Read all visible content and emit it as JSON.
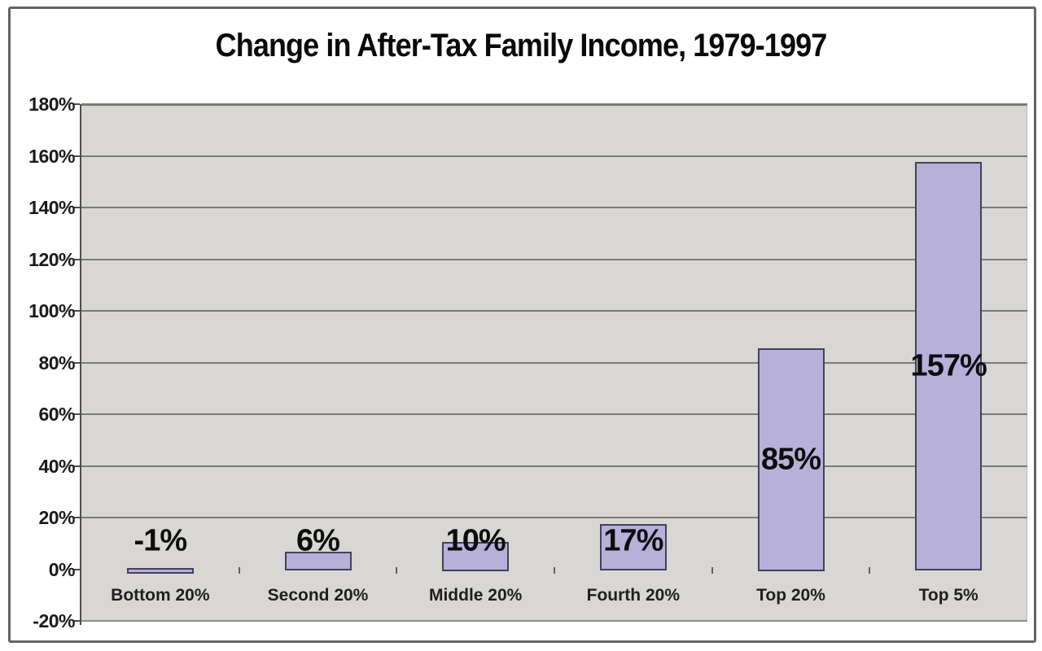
{
  "chart_data": {
    "type": "bar",
    "title": "Change in After-Tax Family Income, 1979-1997",
    "categories": [
      "Bottom 20%",
      "Second 20%",
      "Middle 20%",
      "Fourth 20%",
      "Top 20%",
      "Top 5%"
    ],
    "values": [
      -1,
      6,
      10,
      17,
      85,
      157
    ],
    "bar_labels": [
      "-1%",
      "6%",
      "10%",
      "17%",
      "85%",
      "157%"
    ],
    "y_axis": {
      "tick_labels": [
        "180%",
        "160%",
        "140%",
        "120%",
        "100%",
        "80%",
        "60%",
        "40%",
        "20%",
        "0%",
        "-20%"
      ],
      "tick_values": [
        180,
        160,
        140,
        120,
        100,
        80,
        60,
        40,
        20,
        0,
        -20
      ],
      "range": [
        -20,
        180
      ]
    },
    "grid": true,
    "legend": false,
    "colors": {
      "bar_fill": "#b7b1d9",
      "bar_border": "#42425a",
      "plot_background": "#d8d7d4",
      "gridline": "#7a7a78",
      "axis_line": "#4e4e4e",
      "text": "#111111"
    }
  }
}
